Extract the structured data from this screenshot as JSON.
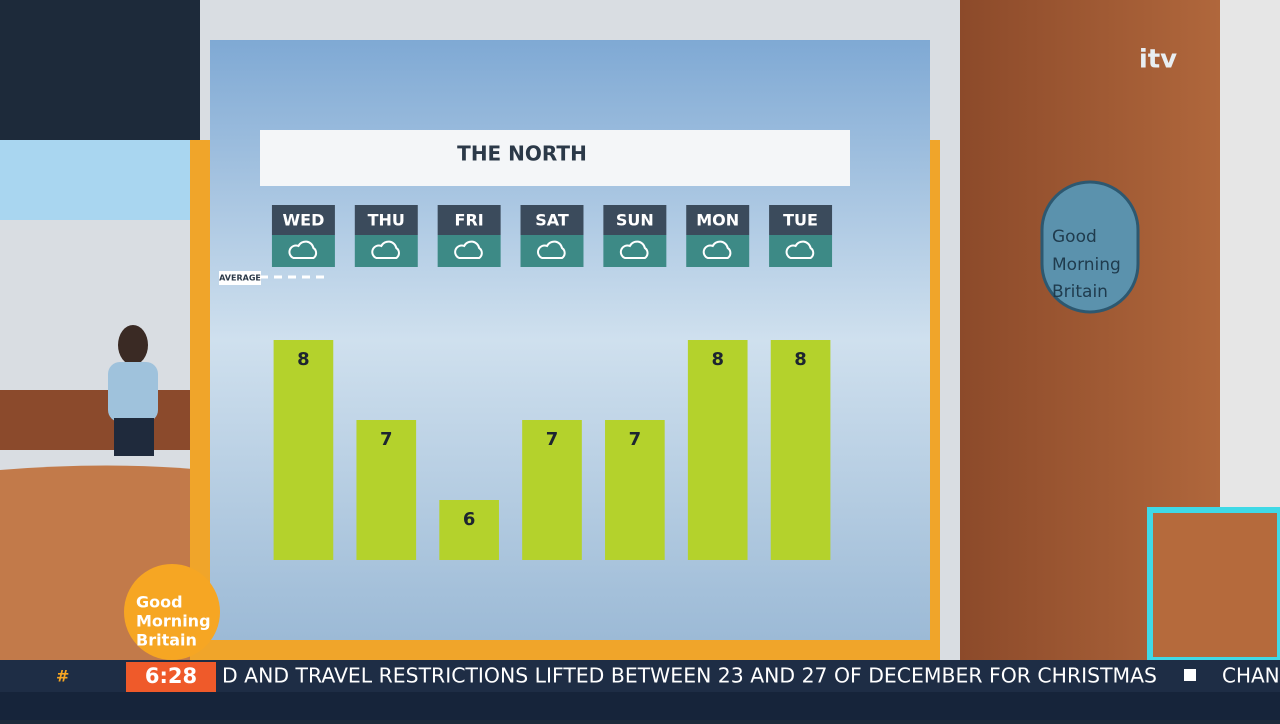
{
  "chart_data": {
    "type": "bar",
    "title": "THE NORTH",
    "categories": [
      "WED",
      "THU",
      "FRI",
      "SAT",
      "SUN",
      "MON",
      "TUE"
    ],
    "values": [
      8,
      7,
      6,
      7,
      7,
      8,
      8
    ],
    "color": "#b4d22c",
    "annotation": "AVERAGE"
  },
  "branding": {
    "channel": "itv",
    "logo": [
      "Good",
      "Morning",
      "Britain"
    ]
  },
  "ticker": {
    "hash": "#",
    "time": "6:28",
    "headline": "D AND TRAVEL RESTRICTIONS LIFTED BETWEEN 23 AND 27 OF DECEMBER FOR CHRISTMAS",
    "next": "CHAN"
  }
}
